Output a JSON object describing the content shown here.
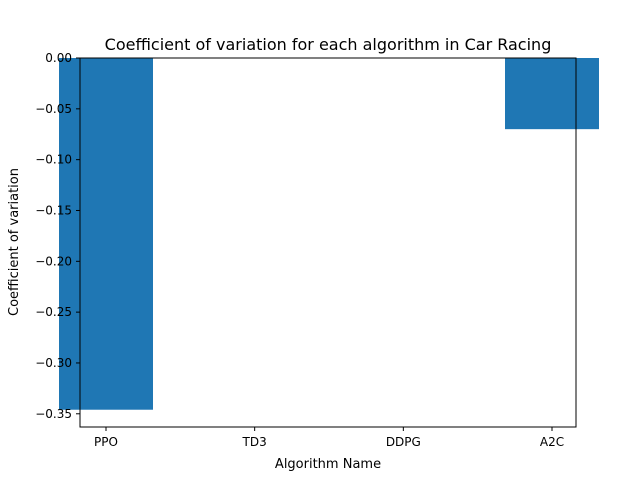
{
  "chart_data": {
    "type": "bar",
    "title": "Coefficient of variation for each algorithm in Car Racing",
    "xlabel": "Algorithm Name",
    "ylabel": "Coefficient of variation",
    "categories": [
      "PPO",
      "TD3",
      "DDPG",
      "A2C"
    ],
    "values": [
      -0.346,
      0.0,
      0.0,
      -0.07
    ],
    "ylim": [
      -0.363,
      0.0
    ],
    "yticks": [
      0.0,
      -0.05,
      -0.1,
      -0.15,
      -0.2,
      -0.25,
      -0.3,
      -0.35
    ],
    "ytick_labels": [
      "0.00",
      "−0.05",
      "−0.10",
      "−0.15",
      "−0.20",
      "−0.25",
      "−0.30",
      "−0.35"
    ],
    "grid": false,
    "bar_color": "#1f77b4"
  }
}
